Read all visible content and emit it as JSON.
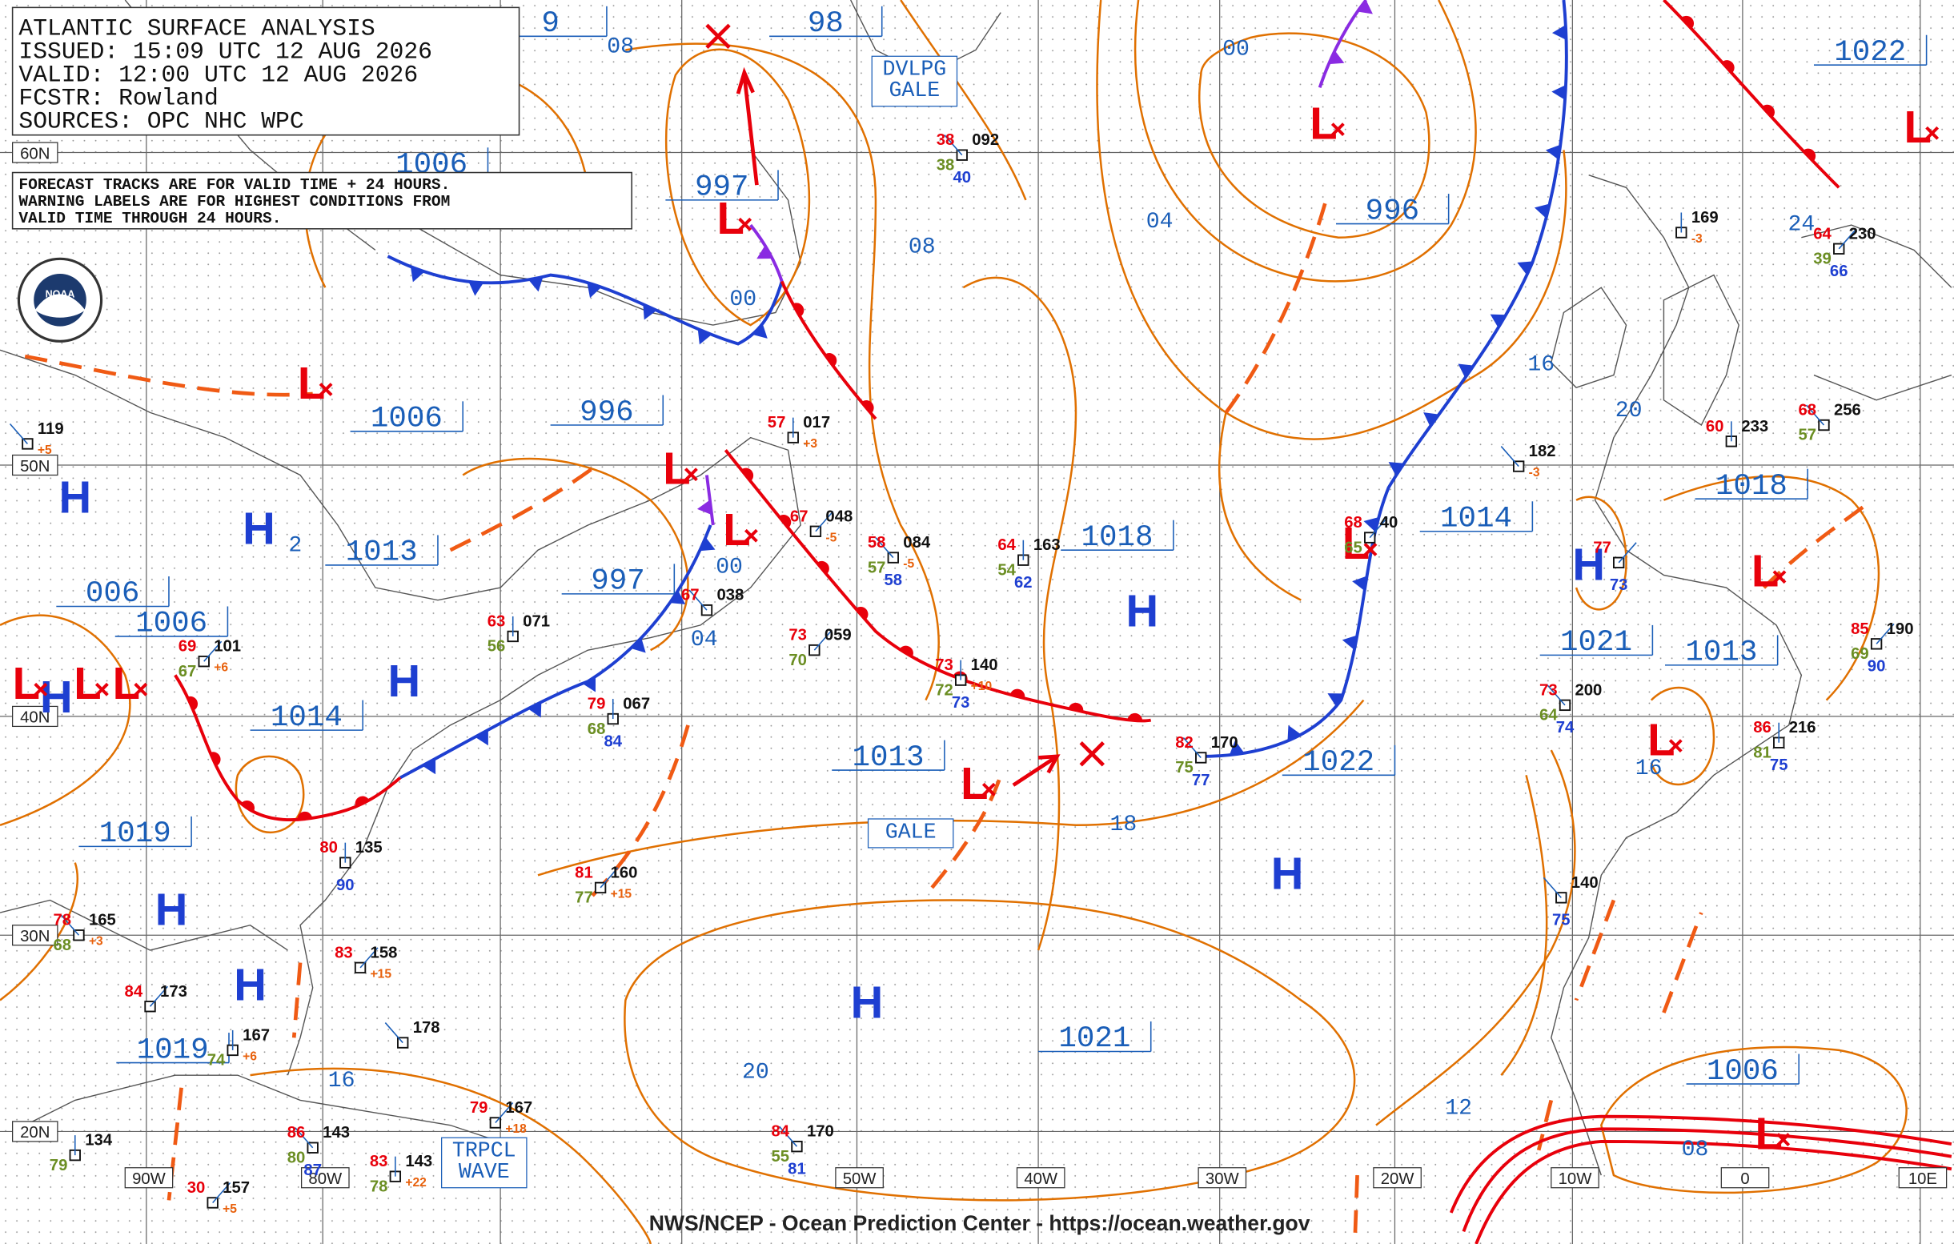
{
  "header": {
    "lines": [
      "ATLANTIC SURFACE ANALYSIS",
      "ISSUED: 15:09 UTC 12 AUG 2026",
      "VALID:  12:00 UTC 12 AUG 2026",
      "FCSTR:  Rowland",
      "SOURCES: OPC NHC WPC"
    ]
  },
  "note": {
    "lines": [
      "FORECAST TRACKS ARE FOR VALID TIME + 24 HOURS.",
      "WARNING LABELS ARE FOR HIGHEST CONDITIONS FROM",
      "VALID TIME THROUGH 24 HOURS."
    ]
  },
  "latitude_labels": [
    "60N",
    "50N",
    "40N",
    "30N",
    "20N"
  ],
  "longitude_labels": [
    "90W",
    "80W",
    "50W",
    "40W",
    "30W",
    "20W",
    "10W",
    "0",
    "10E"
  ],
  "pressure_labels": [
    "1006",
    "997",
    "996",
    "1006",
    "1013",
    "997",
    "1006",
    "006",
    "1014",
    "1019",
    "1019",
    "1013",
    "1018",
    "1014",
    "1022",
    "1021",
    "1013",
    "1018",
    "1022",
    "996",
    "1021",
    "1006",
    "98",
    "9"
  ],
  "contour_labels": [
    "00",
    "04",
    "08",
    "00",
    "16",
    "20",
    "24",
    "00",
    "04",
    "18",
    "20",
    "16",
    "12",
    "08",
    "08",
    "16",
    "2"
  ],
  "highs": [
    "H",
    "H",
    "H",
    "H",
    "H",
    "H",
    "H",
    "H",
    "H",
    "H"
  ],
  "lows": [
    "L",
    "L",
    "L",
    "L",
    "L",
    "L",
    "L",
    "L",
    "L",
    "L",
    "L",
    "L",
    "L",
    "L"
  ],
  "warnings": [
    "DVLPG\nGALE",
    "GALE",
    "TRPCL\nWAVE"
  ],
  "stations": [
    {
      "p": "092",
      "t": "38",
      "d": "38",
      "v": "40"
    },
    {
      "p": "017",
      "t": "57",
      "tend": "+3"
    },
    {
      "p": "048",
      "t": "67",
      "tend": "-5"
    },
    {
      "p": "084",
      "t": "58",
      "d": "57",
      "v": "58",
      "tend": "-5"
    },
    {
      "p": "163",
      "t": "64",
      "d": "54",
      "v": "62"
    },
    {
      "p": "40",
      "t": "68",
      "d": "65"
    },
    {
      "p": "182",
      "tend": "-3"
    },
    {
      "p": "169",
      "tend": "-3"
    },
    {
      "p": "230",
      "t": "64",
      "d": "39",
      "v": "66"
    },
    {
      "p": "256",
      "t": "68",
      "d": "57"
    },
    {
      "p": "233",
      "t": "60"
    },
    {
      "t": "77",
      "v": "73"
    },
    {
      "p": "200",
      "t": "73",
      "d": "64",
      "v": "74"
    },
    {
      "p": "216",
      "t": "86",
      "d": "81",
      "v": "75"
    },
    {
      "p": "190",
      "t": "85",
      "d": "69",
      "v": "90"
    },
    {
      "p": "140",
      "v": "75"
    },
    {
      "p": "140",
      "t": "73",
      "d": "72",
      "v": "73",
      "tend": "+10"
    },
    {
      "p": "059",
      "t": "73",
      "d": "70"
    },
    {
      "p": "038",
      "t": "67"
    },
    {
      "p": "067",
      "t": "79",
      "d": "68",
      "v": "84"
    },
    {
      "p": "160",
      "t": "81",
      "d": "77",
      "tend": "+15"
    },
    {
      "p": "170",
      "t": "82",
      "d": "75",
      "v": "77"
    },
    {
      "p": "071",
      "t": "63",
      "d": "56"
    },
    {
      "p": "101",
      "t": "69",
      "d": "67",
      "tend": "+6"
    },
    {
      "p": "119",
      "tend": "+5"
    },
    {
      "p": "135",
      "t": "80",
      "v": "90"
    },
    {
      "p": "158",
      "t": "83",
      "tend": "+15"
    },
    {
      "p": "178"
    },
    {
      "p": "167",
      "d": "74",
      "tend": "+6"
    },
    {
      "p": "173",
      "t": "84"
    },
    {
      "p": "165",
      "t": "78",
      "d": "68",
      "tend": "+3"
    },
    {
      "p": "134",
      "d": "79"
    },
    {
      "p": "157",
      "t": "30",
      "tend": "+5"
    },
    {
      "p": "143",
      "t": "86",
      "d": "80",
      "v": "87"
    },
    {
      "p": "143",
      "t": "83",
      "d": "78",
      "tend": "+22"
    },
    {
      "p": "167",
      "t": "79",
      "tend": "+18"
    },
    {
      "p": "170",
      "t": "84",
      "d": "55",
      "v": "81"
    }
  ],
  "footer": "NWS/NCEP - Ocean Prediction Center - https://ocean.weather.gov"
}
